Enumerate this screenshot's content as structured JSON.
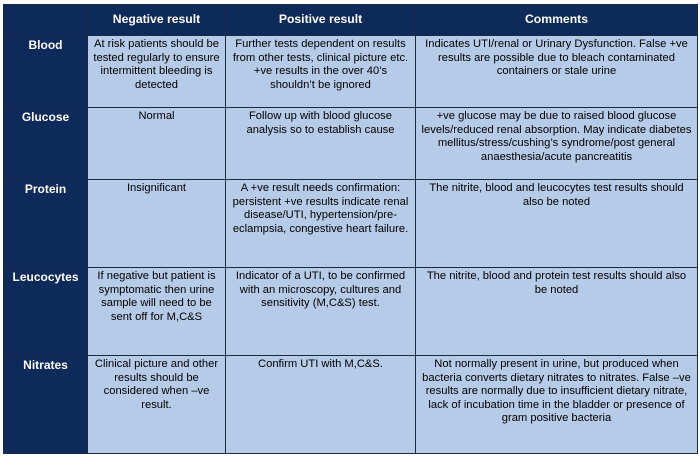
{
  "header": {
    "corner": "",
    "negative": "Negative result",
    "positive": "Positive result",
    "comments": "Comments"
  },
  "rows": [
    {
      "label": "Blood",
      "negative": "At risk patients should be tested regularly to ensure intermittent bleeding is detected",
      "positive": "Further tests dependent on results from other tests, clinical picture etc. +ve results in the over 40’s shouldn’t be ignored",
      "comments": "Indicates UTI/renal or Urinary Dysfunction. False +ve results are possible due to bleach contaminated containers or stale urine"
    },
    {
      "label": "Glucose",
      "negative": "Normal",
      "positive": "Follow up with blood glucose analysis so to establish cause",
      "comments": "+ve glucose may be due to raised blood glucose levels/reduced renal absorption. May indicate diabetes mellitus/stress/cushing’s syndrome/post general anaesthesia/acute pancreatitis"
    },
    {
      "label": "Protein",
      "negative": "Insignificant",
      "positive": "A +ve result needs confirmation: persistent +ve results indicate renal disease/UTI, hypertension/pre-eclampsia, congestive heart failure.",
      "comments": "The nitrite, blood and leucocytes test results should also be noted"
    },
    {
      "label": "Leucocytes",
      "negative": "If negative but patient is symptomatic then urine sample will need to be sent off for M,C&S",
      "positive": "Indicator of a UTI, to be confirmed with an microscopy, cultures and sensitivity (M,C&S) test.",
      "comments": "The nitrite, blood and protein test results should also be noted"
    },
    {
      "label": "Nitrates",
      "negative": "Clinical picture and other results should be considered when –ve result.",
      "positive": "Confirm UTI with M,C&S.",
      "comments": "Not normally present in urine, but produced when bacteria converts dietary nitrates to nitrates. False –ve results are normally due to insufficient dietary nitrate, lack of incubation time in the bladder or presence of gram positive bacteria"
    }
  ]
}
